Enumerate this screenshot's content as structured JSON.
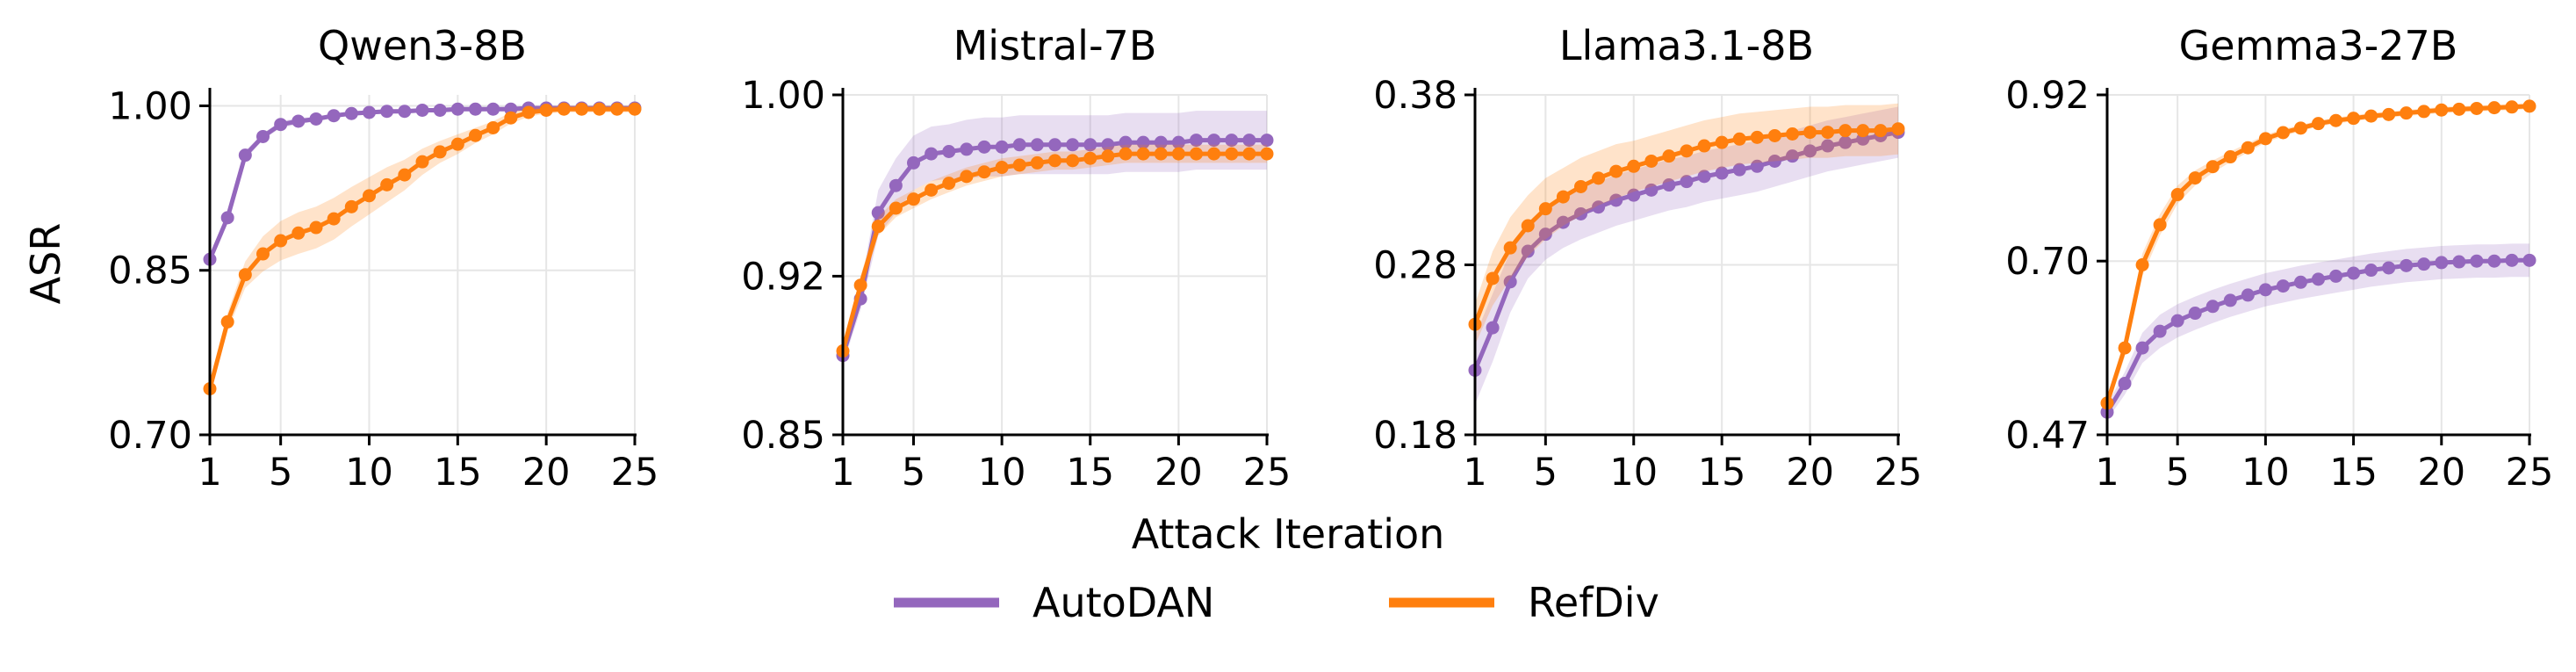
{
  "figure": {
    "ylabel": "ASR",
    "xlabel": "Attack Iteration"
  },
  "legend": [
    {
      "label": "AutoDAN",
      "color": "#9467bd"
    },
    {
      "label": "RefDiv",
      "color": "#ff7f0e"
    }
  ],
  "chart_data": [
    {
      "type": "line",
      "title": "Qwen3-8B",
      "xlim": [
        1,
        25
      ],
      "ylim": [
        0.7,
        1.01
      ],
      "xticks": [
        1,
        5,
        10,
        15,
        20,
        25
      ],
      "yticks": [
        "0.70",
        "0.85",
        "1.00"
      ],
      "x": [
        1,
        2,
        3,
        4,
        5,
        6,
        7,
        8,
        9,
        10,
        11,
        12,
        13,
        14,
        15,
        16,
        17,
        18,
        19,
        20,
        21,
        22,
        23,
        24,
        25
      ],
      "series": [
        {
          "name": "AutoDAN",
          "color": "#9467bd",
          "values": [
            0.86,
            0.898,
            0.955,
            0.972,
            0.983,
            0.986,
            0.988,
            0.991,
            0.993,
            0.994,
            0.995,
            0.995,
            0.996,
            0.996,
            0.997,
            0.997,
            0.997,
            0.997,
            0.998,
            0.998,
            0.998,
            0.998,
            0.998,
            0.998,
            0.998
          ],
          "band": [
            0.004,
            0.004,
            0.004,
            0.003,
            0.003,
            0.003,
            0.002,
            0.002,
            0.002,
            0.002,
            0.002,
            0.002,
            0.002,
            0.002,
            0.002,
            0.002,
            0.002,
            0.002,
            0.002,
            0.002,
            0.002,
            0.002,
            0.002,
            0.002,
            0.002
          ]
        },
        {
          "name": "RefDiv",
          "color": "#ff7f0e",
          "values": [
            0.742,
            0.803,
            0.846,
            0.865,
            0.877,
            0.884,
            0.889,
            0.897,
            0.908,
            0.918,
            0.928,
            0.937,
            0.949,
            0.958,
            0.965,
            0.973,
            0.98,
            0.989,
            0.994,
            0.996,
            0.997,
            0.997,
            0.997,
            0.997,
            0.997
          ],
          "band": [
            0.006,
            0.008,
            0.012,
            0.016,
            0.018,
            0.019,
            0.019,
            0.019,
            0.018,
            0.017,
            0.016,
            0.014,
            0.012,
            0.01,
            0.009,
            0.007,
            0.006,
            0.005,
            0.004,
            0.003,
            0.003,
            0.003,
            0.003,
            0.003,
            0.003
          ]
        }
      ]
    },
    {
      "type": "line",
      "title": "Mistral-7B",
      "xlim": [
        1,
        25
      ],
      "ylim": [
        0.85,
        1.0
      ],
      "xticks": [
        1,
        5,
        10,
        15,
        20,
        25
      ],
      "yticks": [
        "0.85",
        "0.92",
        "1.00"
      ],
      "x": [
        1,
        2,
        3,
        4,
        5,
        6,
        7,
        8,
        9,
        10,
        11,
        12,
        13,
        14,
        15,
        16,
        17,
        18,
        19,
        20,
        21,
        22,
        23,
        24,
        25
      ],
      "series": [
        {
          "name": "AutoDAN",
          "color": "#9467bd",
          "values": [
            0.885,
            0.91,
            0.948,
            0.96,
            0.97,
            0.974,
            0.975,
            0.976,
            0.977,
            0.977,
            0.978,
            0.978,
            0.978,
            0.978,
            0.978,
            0.978,
            0.979,
            0.979,
            0.979,
            0.979,
            0.98,
            0.98,
            0.98,
            0.98,
            0.98
          ],
          "band": [
            0.004,
            0.005,
            0.01,
            0.012,
            0.012,
            0.012,
            0.012,
            0.013,
            0.013,
            0.013,
            0.013,
            0.013,
            0.013,
            0.013,
            0.013,
            0.013,
            0.013,
            0.013,
            0.013,
            0.013,
            0.013,
            0.013,
            0.013,
            0.013,
            0.013
          ]
        },
        {
          "name": "RefDiv",
          "color": "#ff7f0e",
          "values": [
            0.887,
            0.916,
            0.942,
            0.95,
            0.954,
            0.958,
            0.961,
            0.964,
            0.966,
            0.968,
            0.969,
            0.97,
            0.971,
            0.971,
            0.972,
            0.973,
            0.974,
            0.974,
            0.974,
            0.974,
            0.974,
            0.974,
            0.974,
            0.974,
            0.974
          ],
          "band": [
            0.003,
            0.004,
            0.004,
            0.004,
            0.004,
            0.004,
            0.004,
            0.004,
            0.004,
            0.004,
            0.004,
            0.004,
            0.004,
            0.004,
            0.004,
            0.004,
            0.004,
            0.004,
            0.004,
            0.004,
            0.004,
            0.004,
            0.004,
            0.004,
            0.004
          ]
        }
      ]
    },
    {
      "type": "line",
      "title": "Llama3.1-8B",
      "xlim": [
        1,
        25
      ],
      "ylim": [
        0.18,
        0.38
      ],
      "xticks": [
        1,
        5,
        10,
        15,
        20,
        25
      ],
      "yticks": [
        "0.18",
        "0.28",
        "0.38"
      ],
      "x": [
        1,
        2,
        3,
        4,
        5,
        6,
        7,
        8,
        9,
        10,
        11,
        12,
        13,
        14,
        15,
        16,
        17,
        18,
        19,
        20,
        21,
        22,
        23,
        24,
        25
      ],
      "series": [
        {
          "name": "AutoDAN",
          "color": "#9467bd",
          "values": [
            0.218,
            0.243,
            0.27,
            0.288,
            0.298,
            0.305,
            0.31,
            0.314,
            0.318,
            0.321,
            0.324,
            0.327,
            0.329,
            0.332,
            0.334,
            0.336,
            0.338,
            0.341,
            0.344,
            0.347,
            0.35,
            0.352,
            0.354,
            0.356,
            0.358
          ],
          "band": [
            0.02,
            0.02,
            0.018,
            0.016,
            0.015,
            0.015,
            0.015,
            0.015,
            0.015,
            0.015,
            0.015,
            0.015,
            0.015,
            0.015,
            0.015,
            0.015,
            0.015,
            0.015,
            0.015,
            0.015,
            0.015,
            0.015,
            0.015,
            0.015,
            0.015
          ]
        },
        {
          "name": "RefDiv",
          "color": "#ff7f0e",
          "values": [
            0.245,
            0.272,
            0.29,
            0.303,
            0.313,
            0.32,
            0.326,
            0.331,
            0.335,
            0.338,
            0.341,
            0.344,
            0.347,
            0.35,
            0.352,
            0.354,
            0.355,
            0.356,
            0.357,
            0.358,
            0.358,
            0.359,
            0.359,
            0.359,
            0.36
          ],
          "band": [
            0.012,
            0.016,
            0.018,
            0.018,
            0.018,
            0.017,
            0.017,
            0.016,
            0.016,
            0.015,
            0.015,
            0.015,
            0.015,
            0.015,
            0.015,
            0.015,
            0.015,
            0.015,
            0.015,
            0.015,
            0.015,
            0.015,
            0.015,
            0.015,
            0.015
          ]
        }
      ]
    },
    {
      "type": "line",
      "title": "Gemma3-27B",
      "xlim": [
        1,
        25
      ],
      "ylim": [
        0.47,
        0.92
      ],
      "xticks": [
        1,
        5,
        10,
        15,
        20,
        25
      ],
      "yticks": [
        "0.47",
        "0.70",
        "0.92"
      ],
      "x": [
        1,
        2,
        3,
        4,
        5,
        6,
        7,
        8,
        9,
        10,
        11,
        12,
        13,
        14,
        15,
        16,
        17,
        18,
        19,
        20,
        21,
        22,
        23,
        24,
        25
      ],
      "series": [
        {
          "name": "AutoDAN",
          "color": "#9467bd",
          "values": [
            0.5,
            0.538,
            0.585,
            0.607,
            0.621,
            0.631,
            0.64,
            0.648,
            0.655,
            0.662,
            0.667,
            0.672,
            0.676,
            0.68,
            0.684,
            0.688,
            0.691,
            0.694,
            0.696,
            0.698,
            0.699,
            0.7,
            0.7,
            0.701,
            0.701
          ],
          "band": [
            0.01,
            0.015,
            0.02,
            0.022,
            0.022,
            0.022,
            0.022,
            0.022,
            0.022,
            0.022,
            0.022,
            0.022,
            0.022,
            0.022,
            0.022,
            0.022,
            0.022,
            0.022,
            0.022,
            0.022,
            0.022,
            0.022,
            0.022,
            0.022,
            0.022
          ]
        },
        {
          "name": "RefDiv",
          "color": "#ff7f0e",
          "values": [
            0.512,
            0.585,
            0.695,
            0.748,
            0.788,
            0.81,
            0.825,
            0.838,
            0.85,
            0.862,
            0.87,
            0.876,
            0.882,
            0.886,
            0.889,
            0.892,
            0.894,
            0.896,
            0.898,
            0.9,
            0.901,
            0.902,
            0.903,
            0.904,
            0.905
          ],
          "band": [
            0.008,
            0.012,
            0.015,
            0.014,
            0.012,
            0.01,
            0.008,
            0.007,
            0.006,
            0.005,
            0.005,
            0.004,
            0.004,
            0.004,
            0.004,
            0.004,
            0.004,
            0.004,
            0.004,
            0.004,
            0.004,
            0.004,
            0.004,
            0.004,
            0.004
          ]
        }
      ]
    }
  ]
}
